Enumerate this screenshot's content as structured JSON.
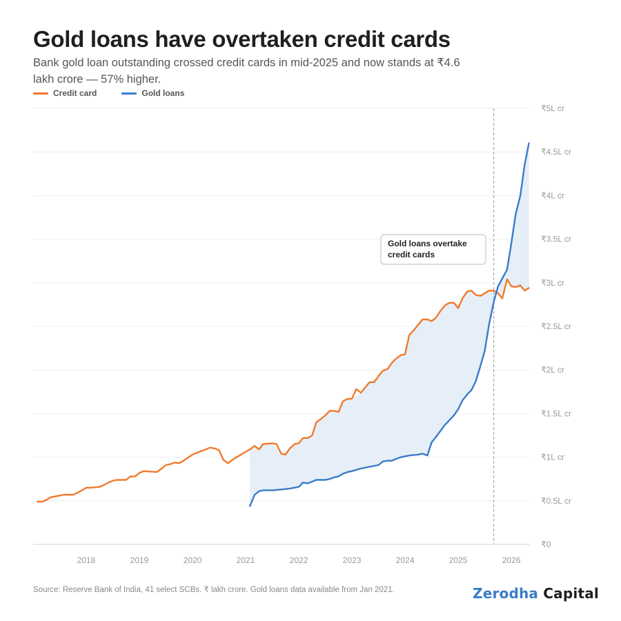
{
  "title": "Gold loans have overtaken credit cards",
  "subtitle": "Bank gold loan outstanding crossed credit cards in mid-2025 and now stands at ₹4.6 lakh crore — 57% higher.",
  "source": "Source: Reserve Bank of India, 41 select SCBs. ₹ lakh crore. Gold loans data available from Jan 2021.",
  "brand": {
    "part1": "Zerodha",
    "part2": "Capital"
  },
  "colors": {
    "credit_card": "#f07a2a",
    "gold_loans": "#3a7bc8",
    "fill": "#e6eef8",
    "grid": "#eeeeee",
    "annotation_line": "#999999"
  },
  "chart_data": {
    "type": "line",
    "xlabel": "",
    "ylabel": "",
    "xlim": [
      2017.0,
      2026.35
    ],
    "ylim": [
      0,
      5
    ],
    "x_ticks": [
      2018,
      2019,
      2020,
      2021,
      2022,
      2023,
      2024,
      2025,
      2026
    ],
    "x_tick_labels": [
      "2018",
      "2019",
      "2020",
      "2021",
      "2022",
      "2023",
      "2024",
      "2025",
      "2026"
    ],
    "y_ticks": [
      0,
      0.5,
      1,
      1.5,
      2,
      2.5,
      3,
      3.5,
      4,
      4.5,
      5
    ],
    "y_tick_labels": [
      "₹0",
      "₹0.5L cr",
      "₹1L cr",
      "₹1.5L cr",
      "₹2L cr",
      "₹2.5L cr",
      "₹3L cr",
      "₹3.5L cr",
      "₹4L cr",
      "₹4.5L cr",
      "₹5L cr"
    ],
    "grid": true,
    "legend_position": "top-left",
    "series": [
      {
        "name": "Credit card",
        "color": "#f07a2a",
        "points": [
          [
            2017.08,
            0.49
          ],
          [
            2017.17,
            0.49
          ],
          [
            2017.25,
            0.51
          ],
          [
            2017.33,
            0.54
          ],
          [
            2017.5,
            0.56
          ],
          [
            2017.58,
            0.57
          ],
          [
            2017.75,
            0.57
          ],
          [
            2017.83,
            0.59
          ],
          [
            2017.92,
            0.62
          ],
          [
            2018.0,
            0.65
          ],
          [
            2018.08,
            0.65
          ],
          [
            2018.25,
            0.66
          ],
          [
            2018.33,
            0.68
          ],
          [
            2018.42,
            0.71
          ],
          [
            2018.5,
            0.73
          ],
          [
            2018.58,
            0.74
          ],
          [
            2018.75,
            0.74
          ],
          [
            2018.83,
            0.78
          ],
          [
            2018.92,
            0.78
          ],
          [
            2019.0,
            0.82
          ],
          [
            2019.08,
            0.84
          ],
          [
            2019.33,
            0.83
          ],
          [
            2019.42,
            0.87
          ],
          [
            2019.5,
            0.91
          ],
          [
            2019.58,
            0.92
          ],
          [
            2019.67,
            0.94
          ],
          [
            2019.75,
            0.93
          ],
          [
            2019.83,
            0.96
          ],
          [
            2020.0,
            1.03
          ],
          [
            2020.08,
            1.05
          ],
          [
            2020.25,
            1.09
          ],
          [
            2020.33,
            1.11
          ],
          [
            2020.42,
            1.1
          ],
          [
            2020.5,
            1.08
          ],
          [
            2020.58,
            0.97
          ],
          [
            2020.67,
            0.93
          ],
          [
            2020.75,
            0.97
          ],
          [
            2020.83,
            1.0
          ],
          [
            2021.0,
            1.06
          ],
          [
            2021.08,
            1.09
          ],
          [
            2021.17,
            1.13
          ],
          [
            2021.25,
            1.09
          ],
          [
            2021.33,
            1.15
          ],
          [
            2021.5,
            1.16
          ],
          [
            2021.58,
            1.15
          ],
          [
            2021.67,
            1.04
          ],
          [
            2021.75,
            1.03
          ],
          [
            2021.83,
            1.1
          ],
          [
            2021.92,
            1.15
          ],
          [
            2022.0,
            1.16
          ],
          [
            2022.08,
            1.22
          ],
          [
            2022.17,
            1.22
          ],
          [
            2022.25,
            1.25
          ],
          [
            2022.33,
            1.4
          ],
          [
            2022.42,
            1.44
          ],
          [
            2022.5,
            1.48
          ],
          [
            2022.58,
            1.53
          ],
          [
            2022.67,
            1.53
          ],
          [
            2022.75,
            1.52
          ],
          [
            2022.83,
            1.64
          ],
          [
            2022.92,
            1.67
          ],
          [
            2023.0,
            1.67
          ],
          [
            2023.08,
            1.78
          ],
          [
            2023.17,
            1.74
          ],
          [
            2023.25,
            1.8
          ],
          [
            2023.33,
            1.86
          ],
          [
            2023.42,
            1.86
          ],
          [
            2023.5,
            1.93
          ],
          [
            2023.58,
            1.99
          ],
          [
            2023.67,
            2.01
          ],
          [
            2023.75,
            2.08
          ],
          [
            2023.83,
            2.13
          ],
          [
            2023.92,
            2.17
          ],
          [
            2024.0,
            2.18
          ],
          [
            2024.08,
            2.4
          ],
          [
            2024.17,
            2.46
          ],
          [
            2024.25,
            2.52
          ],
          [
            2024.33,
            2.58
          ],
          [
            2024.42,
            2.58
          ],
          [
            2024.5,
            2.56
          ],
          [
            2024.58,
            2.6
          ],
          [
            2024.67,
            2.68
          ],
          [
            2024.75,
            2.74
          ],
          [
            2024.83,
            2.77
          ],
          [
            2024.92,
            2.77
          ],
          [
            2025.0,
            2.71
          ],
          [
            2025.08,
            2.82
          ],
          [
            2025.17,
            2.9
          ],
          [
            2025.25,
            2.91
          ],
          [
            2025.33,
            2.86
          ],
          [
            2025.42,
            2.85
          ],
          [
            2025.5,
            2.88
          ],
          [
            2025.58,
            2.91
          ],
          [
            2025.67,
            2.91
          ],
          [
            2025.75,
            2.88
          ],
          [
            2025.83,
            2.82
          ],
          [
            2025.92,
            3.04
          ],
          [
            2026.0,
            2.96
          ],
          [
            2026.08,
            2.95
          ],
          [
            2026.17,
            2.97
          ],
          [
            2026.25,
            2.91
          ],
          [
            2026.33,
            2.94
          ]
        ]
      },
      {
        "name": "Gold loans",
        "color": "#3a7bc8",
        "points": [
          [
            2021.08,
            0.44
          ],
          [
            2021.17,
            0.57
          ],
          [
            2021.25,
            0.61
          ],
          [
            2021.33,
            0.62
          ],
          [
            2021.5,
            0.62
          ],
          [
            2021.67,
            0.63
          ],
          [
            2021.83,
            0.64
          ],
          [
            2022.0,
            0.66
          ],
          [
            2022.08,
            0.71
          ],
          [
            2022.17,
            0.7
          ],
          [
            2022.25,
            0.72
          ],
          [
            2022.33,
            0.74
          ],
          [
            2022.42,
            0.74
          ],
          [
            2022.5,
            0.74
          ],
          [
            2022.58,
            0.75
          ],
          [
            2022.67,
            0.77
          ],
          [
            2022.75,
            0.78
          ],
          [
            2022.83,
            0.81
          ],
          [
            2022.92,
            0.83
          ],
          [
            2023.0,
            0.84
          ],
          [
            2023.17,
            0.87
          ],
          [
            2023.33,
            0.89
          ],
          [
            2023.5,
            0.91
          ],
          [
            2023.58,
            0.95
          ],
          [
            2023.67,
            0.96
          ],
          [
            2023.75,
            0.96
          ],
          [
            2023.83,
            0.98
          ],
          [
            2023.92,
            1.0
          ],
          [
            2024.0,
            1.01
          ],
          [
            2024.08,
            1.02
          ],
          [
            2024.25,
            1.03
          ],
          [
            2024.33,
            1.04
          ],
          [
            2024.42,
            1.02
          ],
          [
            2024.5,
            1.17
          ],
          [
            2024.58,
            1.23
          ],
          [
            2024.75,
            1.37
          ],
          [
            2024.92,
            1.48
          ],
          [
            2025.0,
            1.55
          ],
          [
            2025.08,
            1.65
          ],
          [
            2025.17,
            1.72
          ],
          [
            2025.25,
            1.77
          ],
          [
            2025.33,
            1.87
          ],
          [
            2025.42,
            2.05
          ],
          [
            2025.5,
            2.22
          ],
          [
            2025.58,
            2.52
          ],
          [
            2025.67,
            2.78
          ],
          [
            2025.75,
            2.96
          ],
          [
            2025.83,
            3.05
          ],
          [
            2025.92,
            3.15
          ],
          [
            2026.0,
            3.45
          ],
          [
            2026.08,
            3.78
          ],
          [
            2026.17,
            4.0
          ],
          [
            2026.25,
            4.35
          ],
          [
            2026.33,
            4.6
          ]
        ]
      }
    ],
    "annotations": [
      {
        "text_line1": "Gold loans overtake",
        "text_line2": "credit cards",
        "x": 2025.67,
        "type": "dashed-vertical-line"
      }
    ]
  }
}
